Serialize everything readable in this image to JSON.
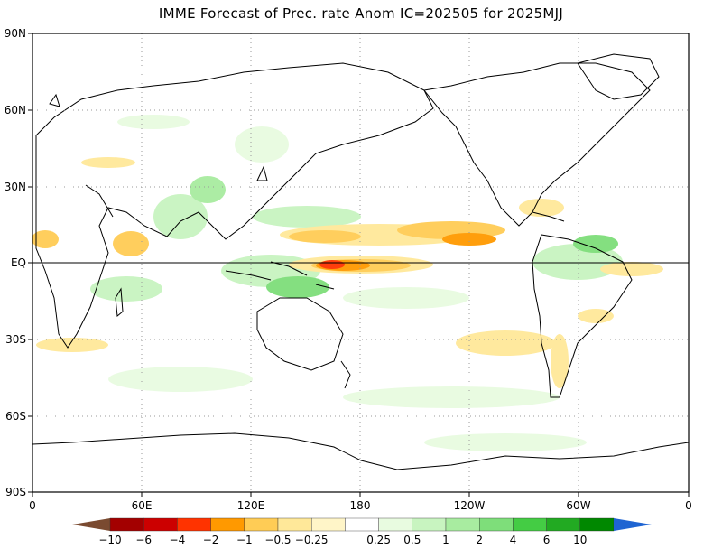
{
  "title": "IMME Forecast of Prec. rate Anom IC=202505 for 2025MJJ",
  "axes": {
    "lat_ticks": [
      "90N",
      "60N",
      "30N",
      "EQ",
      "30S",
      "60S",
      "90S"
    ],
    "lon_ticks": [
      "0",
      "60E",
      "120E",
      "180",
      "120W",
      "60W",
      "0"
    ]
  },
  "colorbar": {
    "labels": [
      "-10",
      "-6",
      "-4",
      "-2",
      "-1",
      "-0.5",
      "-0.25",
      "0.25",
      "0.5",
      "1",
      "2",
      "4",
      "6",
      "10"
    ],
    "colors": [
      "#7a4a30",
      "#a30000",
      "#cc0000",
      "#ff3300",
      "#ff9900",
      "#ffcc55",
      "#ffe899",
      "#fff5c8",
      "#ffffff",
      "#e8fbe0",
      "#c8f4c0",
      "#a8eca0",
      "#7ede7a",
      "#44cc44",
      "#22aa22",
      "#008800",
      "#1e64d2"
    ]
  },
  "chart_data": {
    "type": "heatmap",
    "variable": "Prec. rate Anom",
    "scale_levels": [
      -10,
      -6,
      -4,
      -2,
      -1,
      -0.5,
      -0.25,
      0.25,
      0.5,
      1,
      2,
      4,
      6,
      10
    ]
  }
}
